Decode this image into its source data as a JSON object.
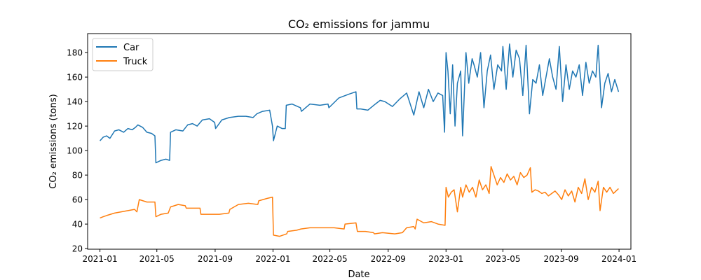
{
  "chart_data": {
    "type": "line",
    "title": "CO₂ emissions for jammu",
    "xlabel": "Date",
    "ylabel": "CO₂ emissions (tons)",
    "xlim": [
      "2020-12-06",
      "2024-01-26"
    ],
    "ylim": [
      19.5,
      195.5
    ],
    "x_ticks": [
      "2021-01-01",
      "2021-05-01",
      "2021-09-01",
      "2022-01-01",
      "2022-05-01",
      "2022-09-01",
      "2023-01-01",
      "2023-05-01",
      "2023-09-01",
      "2024-01-01"
    ],
    "x_tick_labels": [
      "2021-01",
      "2021-05",
      "2021-09",
      "2022-01",
      "2022-05",
      "2022-09",
      "2023-01",
      "2023-05",
      "2023-09",
      "2024-01"
    ],
    "y_ticks": [
      20,
      40,
      60,
      80,
      100,
      120,
      140,
      160,
      180
    ],
    "y_tick_labels": [
      "20",
      "40",
      "60",
      "80",
      "100",
      "120",
      "140",
      "160",
      "180"
    ],
    "grid": false,
    "legend": "upper left",
    "series": [
      {
        "name": "Car",
        "color": "#1f77b4",
        "x": [
          "2021-01-01",
          "2021-01-08",
          "2021-01-15",
          "2021-01-22",
          "2021-02-01",
          "2021-02-10",
          "2021-02-20",
          "2021-03-01",
          "2021-03-10",
          "2021-03-17",
          "2021-03-22",
          "2021-04-01",
          "2021-04-10",
          "2021-04-20",
          "2021-04-27",
          "2021-04-29",
          "2021-05-10",
          "2021-05-20",
          "2021-05-28",
          "2021-05-30",
          "2021-06-10",
          "2021-06-25",
          "2021-07-05",
          "2021-07-15",
          "2021-07-25",
          "2021-08-05",
          "2021-08-20",
          "2021-08-31",
          "2021-09-02",
          "2021-09-15",
          "2021-10-01",
          "2021-10-20",
          "2021-11-05",
          "2021-11-20",
          "2021-11-28",
          "2021-12-10",
          "2021-12-25",
          "2021-12-31",
          "2022-01-02",
          "2022-01-10",
          "2022-01-20",
          "2022-01-27",
          "2022-01-29",
          "2022-02-10",
          "2022-02-28",
          "2022-03-02",
          "2022-03-20",
          "2022-04-10",
          "2022-04-27",
          "2022-04-29",
          "2022-05-20",
          "2022-06-10",
          "2022-06-25",
          "2022-06-27",
          "2022-07-05",
          "2022-07-20",
          "2022-08-05",
          "2022-08-15",
          "2022-08-25",
          "2022-09-10",
          "2022-09-25",
          "2022-10-10",
          "2022-10-25",
          "2022-11-05",
          "2022-11-15",
          "2022-11-25",
          "2022-12-05",
          "2022-12-15",
          "2022-12-25",
          "2022-12-29",
          "2023-01-01",
          "2023-01-05",
          "2023-01-10",
          "2023-01-15",
          "2023-01-20",
          "2023-01-25",
          "2023-02-01",
          "2023-02-05",
          "2023-02-12",
          "2023-02-18",
          "2023-02-25",
          "2023-03-01",
          "2023-03-08",
          "2023-03-15",
          "2023-03-22",
          "2023-03-29",
          "2023-04-05",
          "2023-04-12",
          "2023-04-20",
          "2023-04-28",
          "2023-05-01",
          "2023-05-08",
          "2023-05-15",
          "2023-05-22",
          "2023-05-29",
          "2023-06-05",
          "2023-06-12",
          "2023-06-19",
          "2023-06-26",
          "2023-07-03",
          "2023-07-10",
          "2023-07-17",
          "2023-07-24",
          "2023-07-31",
          "2023-08-07",
          "2023-08-14",
          "2023-08-21",
          "2023-08-28",
          "2023-09-04",
          "2023-09-11",
          "2023-09-18",
          "2023-09-25",
          "2023-10-02",
          "2023-10-09",
          "2023-10-16",
          "2023-10-23",
          "2023-10-30",
          "2023-11-06",
          "2023-11-13",
          "2023-11-18",
          "2023-11-25",
          "2023-12-02",
          "2023-12-09",
          "2023-12-16",
          "2023-12-23",
          "2023-12-31"
        ],
        "values": [
          108,
          111,
          112,
          110,
          116,
          117,
          115,
          118,
          117,
          119,
          121,
          119,
          115,
          114,
          112,
          90,
          92,
          93,
          92,
          115,
          117,
          116,
          121,
          122,
          120,
          125,
          126,
          123,
          118,
          125,
          127,
          128,
          128,
          127,
          130,
          132,
          133,
          120,
          108,
          120,
          118,
          118,
          137,
          138,
          135,
          132,
          138,
          137,
          138,
          135,
          143,
          146,
          148,
          134,
          134,
          133,
          138,
          141,
          140,
          136,
          142,
          147,
          129,
          148,
          135,
          150,
          140,
          147,
          145,
          115,
          180,
          165,
          130,
          170,
          120,
          155,
          165,
          112,
          180,
          155,
          175,
          170,
          160,
          180,
          135,
          165,
          178,
          150,
          170,
          165,
          185,
          150,
          187,
          160,
          182,
          175,
          145,
          186,
          130,
          158,
          155,
          170,
          145,
          160,
          175,
          160,
          150,
          185,
          140,
          170,
          150,
          165,
          160,
          170,
          145,
          172,
          155,
          165,
          160,
          186,
          135,
          155,
          163,
          148,
          158,
          148
        ]
      },
      {
        "name": "Truck",
        "color": "#ff7f0e",
        "x": [
          "2021-01-01",
          "2021-01-08",
          "2021-01-15",
          "2021-02-01",
          "2021-02-15",
          "2021-03-01",
          "2021-03-15",
          "2021-03-20",
          "2021-03-25",
          "2021-04-10",
          "2021-04-27",
          "2021-04-29",
          "2021-05-10",
          "2021-05-25",
          "2021-05-30",
          "2021-06-15",
          "2021-06-30",
          "2021-07-02",
          "2021-07-20",
          "2021-07-31",
          "2021-08-02",
          "2021-08-20",
          "2021-09-10",
          "2021-09-30",
          "2021-10-02",
          "2021-10-20",
          "2021-11-10",
          "2021-11-30",
          "2021-12-02",
          "2021-12-20",
          "2021-12-31",
          "2022-01-02",
          "2022-01-15",
          "2022-01-30",
          "2022-02-01",
          "2022-02-20",
          "2022-03-01",
          "2022-03-20",
          "2022-04-15",
          "2022-05-10",
          "2022-05-31",
          "2022-06-02",
          "2022-06-25",
          "2022-06-28",
          "2022-07-15",
          "2022-08-01",
          "2022-08-03",
          "2022-08-20",
          "2022-09-15",
          "2022-10-01",
          "2022-10-10",
          "2022-10-25",
          "2022-10-28",
          "2022-11-01",
          "2022-11-15",
          "2022-12-01",
          "2022-12-15",
          "2022-12-30",
          "2023-01-01",
          "2023-01-06",
          "2023-01-12",
          "2023-01-18",
          "2023-01-25",
          "2023-02-01",
          "2023-02-05",
          "2023-02-12",
          "2023-02-19",
          "2023-02-26",
          "2023-03-05",
          "2023-03-12",
          "2023-03-19",
          "2023-03-26",
          "2023-04-02",
          "2023-04-06",
          "2023-04-12",
          "2023-04-19",
          "2023-04-26",
          "2023-05-03",
          "2023-05-10",
          "2023-05-17",
          "2023-05-24",
          "2023-05-31",
          "2023-06-07",
          "2023-06-14",
          "2023-06-21",
          "2023-06-28",
          "2023-07-01",
          "2023-07-08",
          "2023-07-15",
          "2023-07-22",
          "2023-07-29",
          "2023-08-05",
          "2023-08-12",
          "2023-08-19",
          "2023-08-26",
          "2023-09-02",
          "2023-09-09",
          "2023-09-16",
          "2023-09-23",
          "2023-09-30",
          "2023-10-07",
          "2023-10-14",
          "2023-10-21",
          "2023-10-28",
          "2023-11-04",
          "2023-11-11",
          "2023-11-18",
          "2023-11-22",
          "2023-11-29",
          "2023-12-06",
          "2023-12-13",
          "2023-12-20",
          "2023-12-31"
        ],
        "values": [
          45,
          46,
          47,
          49,
          50,
          51,
          52,
          50,
          60,
          58,
          58,
          46,
          48,
          49,
          54,
          56,
          55,
          53,
          53,
          53,
          48,
          48,
          48,
          49,
          52,
          56,
          57,
          56,
          59,
          61,
          62,
          31,
          30,
          32,
          34,
          35,
          36,
          37,
          37,
          37,
          36,
          40,
          41,
          34,
          34,
          33,
          32,
          33,
          32,
          33,
          37,
          38,
          36,
          44,
          41,
          42,
          40,
          39,
          70,
          62,
          66,
          68,
          50,
          70,
          62,
          72,
          66,
          70,
          62,
          76,
          68,
          72,
          65,
          87,
          80,
          72,
          78,
          74,
          81,
          76,
          79,
          72,
          82,
          78,
          80,
          86,
          66,
          68,
          67,
          65,
          66,
          63,
          65,
          67,
          64,
          60,
          68,
          63,
          67,
          58,
          70,
          65,
          77,
          60,
          70,
          66,
          75,
          51,
          70,
          66,
          70,
          65,
          69
        ]
      }
    ]
  }
}
